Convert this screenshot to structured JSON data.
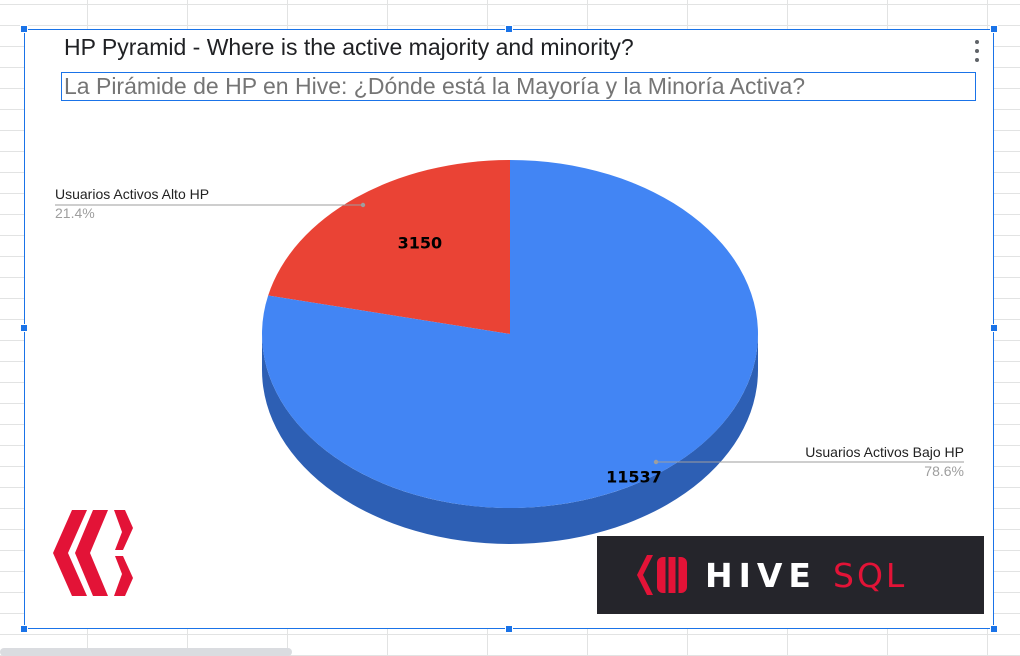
{
  "chart_data": {
    "type": "pie",
    "title": "HP Pyramid - Where is the active majority and minority?",
    "subtitle": "La Pirámide de HP en Hive: ¿Dónde está la Mayoría y la Minoría Activa?",
    "three_d": true,
    "slices": [
      {
        "label": "Usuarios Activos Alto HP",
        "value": 3150,
        "value_label": "3150",
        "percent": "21.4%",
        "color": "#ea4335",
        "side_color": "#b3271c"
      },
      {
        "label": "Usuarios Activos Bajo HP",
        "value": 11537,
        "value_label": "11537",
        "percent": "78.6%",
        "color": "#4285f4",
        "side_color": "#2d5fb4"
      }
    ],
    "legend": "labeled slices"
  },
  "logos": {
    "hive_logo": "hive-logo-icon",
    "hivesql_brand": {
      "word_hive": "HIVE",
      "word_sql": "SQL",
      "accent": "#e31337"
    }
  },
  "colors": {
    "selection": "#1a73e8"
  }
}
